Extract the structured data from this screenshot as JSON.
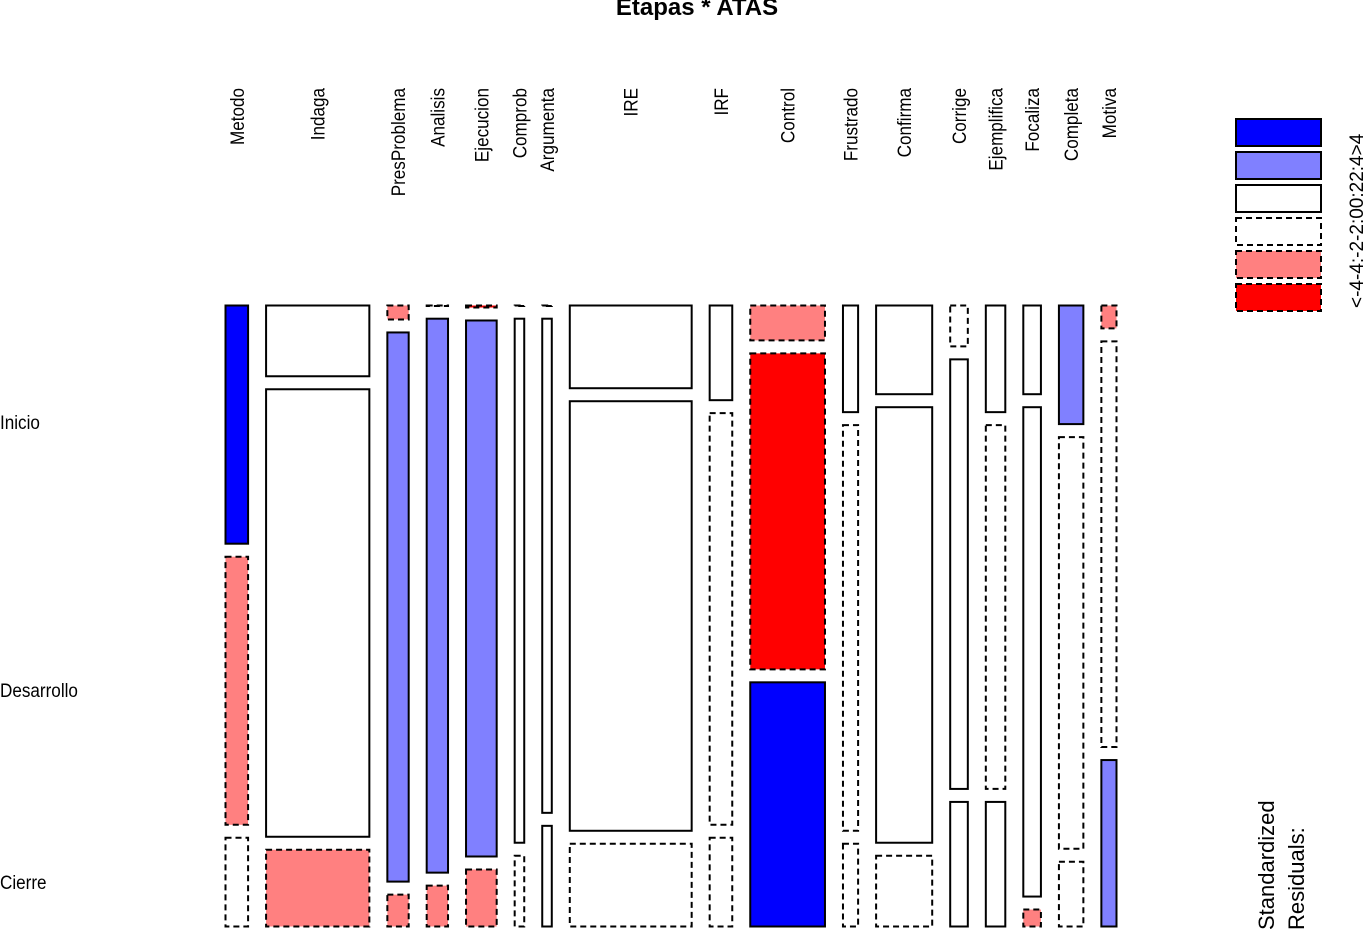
{
  "chart_data": {
    "type": "mosaic",
    "title": "Etapas * ATAS",
    "row_variable": "Etapas",
    "column_variable": "ATAS",
    "rows": [
      "Inicio",
      "Desarrollo",
      "Cierre"
    ],
    "columns": [
      "Metodo",
      "Indaga",
      "PresProblema",
      "Analisis",
      "Ejecucion",
      "Comprob",
      "Argumenta",
      "IRE",
      "IRF",
      "Control",
      "Frustrado",
      "Confirma",
      "Corrige",
      "Ejemplifica",
      "Focaliza",
      "Completa",
      "Motiva"
    ],
    "column_proportions": [
      0.038,
      0.168,
      0.036,
      0.036,
      0.051,
      0.017,
      0.017,
      0.198,
      0.038,
      0.122,
      0.026,
      0.092,
      0.03,
      0.033,
      0.03,
      0.041,
      0.026
    ],
    "conditional_proportions": [
      [
        0.4,
        0.45,
        0.15
      ],
      [
        0.12,
        0.75,
        0.13
      ],
      [
        0.025,
        0.92,
        0.055
      ],
      [
        0.002,
        0.928,
        0.07
      ],
      [
        0.005,
        0.898,
        0.097
      ],
      [
        0.002,
        0.878,
        0.12
      ],
      [
        0.002,
        0.828,
        0.17
      ],
      [
        0.14,
        0.72,
        0.14
      ],
      [
        0.16,
        0.69,
        0.15
      ],
      [
        0.06,
        0.53,
        0.41
      ],
      [
        0.18,
        0.68,
        0.14
      ],
      [
        0.15,
        0.73,
        0.12
      ],
      [
        0.07,
        0.72,
        0.21
      ],
      [
        0.18,
        0.61,
        0.21
      ],
      [
        0.15,
        0.82,
        0.03
      ],
      [
        0.2,
        0.69,
        0.11
      ],
      [
        0.04,
        0.68,
        0.28
      ]
    ],
    "residual_class": [
      [
        ">4",
        "-4:-2",
        "-2:0"
      ],
      [
        "0:2",
        "0:2",
        "-4:-2"
      ],
      [
        "-4:-2",
        "2:4",
        "-4:-2"
      ],
      [
        "-2:0",
        "2:4",
        "-4:-2"
      ],
      [
        "<-4",
        "2:4",
        "-4:-2"
      ],
      [
        "-2:0",
        "0:2",
        "-2:0"
      ],
      [
        "-2:0",
        "0:2",
        "0:2"
      ],
      [
        "0:2",
        "0:2",
        "-2:0"
      ],
      [
        "0:2",
        "-2:0",
        "-2:0"
      ],
      [
        "-4:-2",
        "<-4",
        ">4"
      ],
      [
        "0:2",
        "-2:0",
        "-2:0"
      ],
      [
        "0:2",
        "0:2",
        "-2:0"
      ],
      [
        "-2:0",
        "0:2",
        "0:2"
      ],
      [
        "0:2",
        "-2:0",
        "0:2"
      ],
      [
        "0:2",
        "0:2",
        "-4:-2"
      ],
      [
        "2:4",
        "-2:0",
        "-2:0"
      ],
      [
        "-4:-2",
        "-2:0",
        "2:4"
      ]
    ],
    "legend": {
      "title_lines": [
        "Standardized",
        "Residuals:"
      ],
      "classes": [
        ">4",
        "2:4",
        "0:2",
        "-2:0",
        "-4:-2",
        "<-4"
      ],
      "label_text": "<-4-4:-2-2:00:22:4>4",
      "colors": {
        ">4": "#0000ff",
        "2:4": "#8080ff",
        "0:2": "#ffffff",
        "-2:0": "#ffffff",
        "-4:-2": "#ff8080",
        "<-4": "#ff0000"
      },
      "dashed": [
        "-2:0",
        "-4:-2",
        "<-4"
      ]
    }
  }
}
